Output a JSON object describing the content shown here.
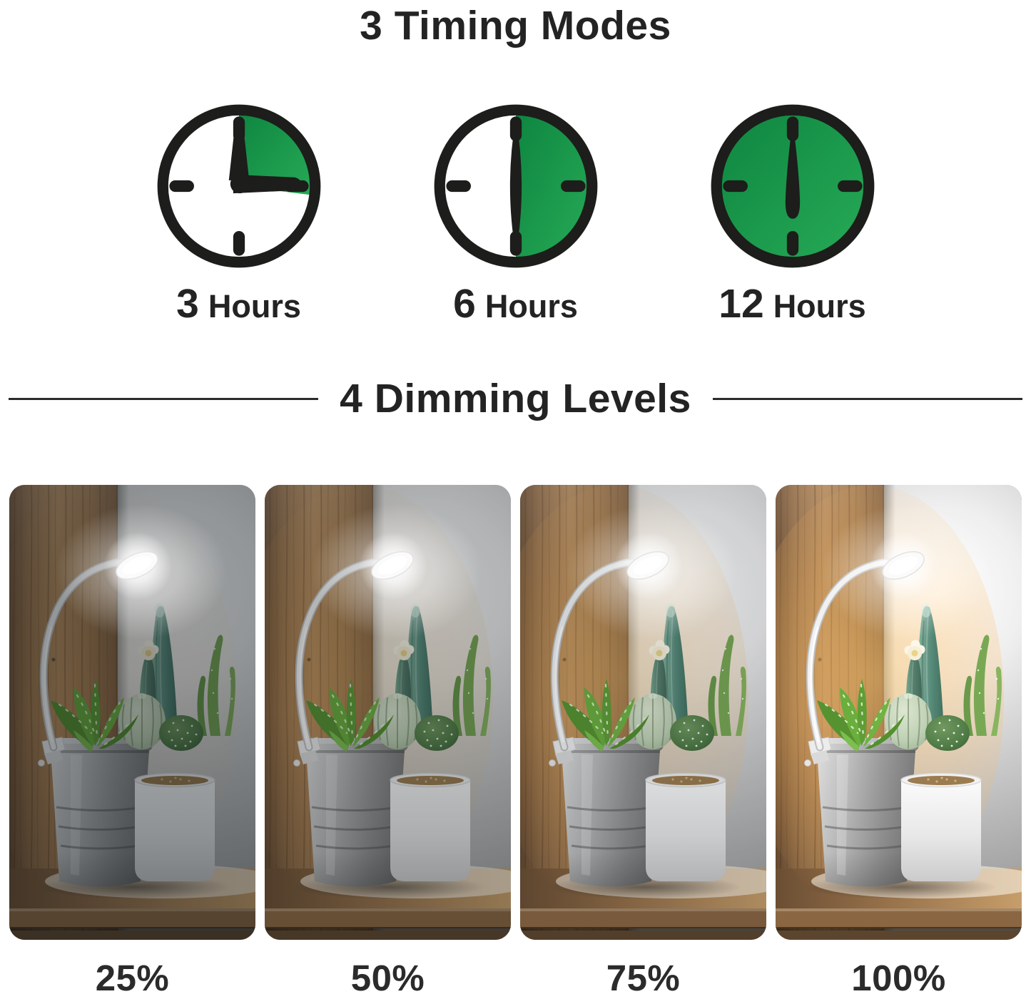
{
  "page": {
    "background": "#ffffff",
    "text_color": "#232323"
  },
  "timing_section": {
    "title": "3 Timing Modes",
    "clock": {
      "green": "#1b9149",
      "green_light": "#27ab57",
      "green_dark": "#0e8540",
      "outline": "#1d1d1b",
      "face": "#ffffff"
    },
    "modes": [
      {
        "hours": "3",
        "unit": "Hours",
        "fraction": 0.25
      },
      {
        "hours": "6",
        "unit": "Hours",
        "fraction": 0.5
      },
      {
        "hours": "12",
        "unit": "Hours",
        "fraction": 1
      }
    ]
  },
  "dimming_section": {
    "title": "4 Dimming Levels",
    "levels": [
      {
        "label": "25%",
        "value": 25
      },
      {
        "label": "50%",
        "value": 50
      },
      {
        "label": "75%",
        "value": 75
      },
      {
        "label": "100%",
        "value": 100
      }
    ]
  }
}
